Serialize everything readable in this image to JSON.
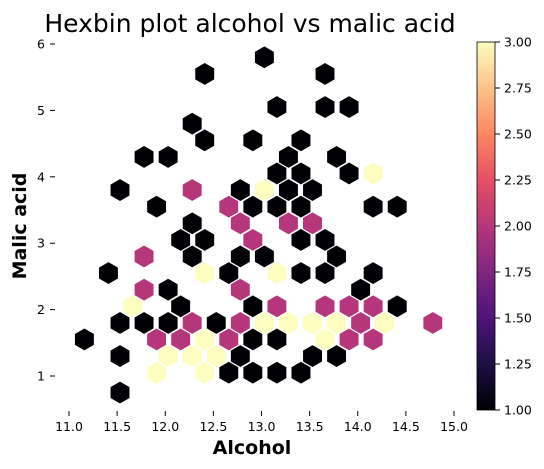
{
  "chart_data": {
    "type": "hexbin",
    "title": "Hexbin plot alcohol vs malic acid",
    "xlabel": "Alcohol",
    "ylabel": "Malic acid",
    "xlim": [
      10.85,
      15.1
    ],
    "ylim": [
      0.45,
      6.1
    ],
    "x_ticks": [
      "11.0",
      "11.5",
      "12.0",
      "12.5",
      "13.0",
      "13.5",
      "14.0",
      "14.5",
      "15.0"
    ],
    "y_ticks": [
      "1",
      "2",
      "3",
      "4",
      "5",
      "6"
    ],
    "colorbar": {
      "min": 1.0,
      "max": 3.0,
      "ticks": [
        "1.00",
        "1.25",
        "1.50",
        "1.75",
        "2.00",
        "2.25",
        "2.50",
        "2.75",
        "3.00"
      ],
      "colormap": "magma"
    },
    "grid": false,
    "bins": [
      {
        "x": 13.03,
        "y": 5.8,
        "count": 1
      },
      {
        "x": 12.41,
        "y": 5.55,
        "count": 1
      },
      {
        "x": 13.66,
        "y": 5.55,
        "count": 1
      },
      {
        "x": 13.16,
        "y": 5.05,
        "count": 1
      },
      {
        "x": 13.66,
        "y": 5.05,
        "count": 1
      },
      {
        "x": 13.91,
        "y": 5.05,
        "count": 1
      },
      {
        "x": 12.28,
        "y": 4.8,
        "count": 1
      },
      {
        "x": 12.41,
        "y": 4.55,
        "count": 1
      },
      {
        "x": 12.91,
        "y": 4.55,
        "count": 1
      },
      {
        "x": 13.41,
        "y": 4.55,
        "count": 1
      },
      {
        "x": 11.78,
        "y": 4.3,
        "count": 1
      },
      {
        "x": 12.03,
        "y": 4.3,
        "count": 1
      },
      {
        "x": 13.28,
        "y": 4.3,
        "count": 1
      },
      {
        "x": 13.78,
        "y": 4.3,
        "count": 1
      },
      {
        "x": 13.16,
        "y": 4.05,
        "count": 1
      },
      {
        "x": 13.41,
        "y": 4.05,
        "count": 1
      },
      {
        "x": 13.91,
        "y": 4.05,
        "count": 1
      },
      {
        "x": 14.16,
        "y": 4.05,
        "count": 3
      },
      {
        "x": 11.53,
        "y": 3.8,
        "count": 1
      },
      {
        "x": 12.28,
        "y": 3.8,
        "count": 2
      },
      {
        "x": 12.78,
        "y": 3.8,
        "count": 1
      },
      {
        "x": 13.03,
        "y": 3.8,
        "count": 3
      },
      {
        "x": 13.28,
        "y": 3.8,
        "count": 1
      },
      {
        "x": 13.53,
        "y": 3.8,
        "count": 1
      },
      {
        "x": 11.91,
        "y": 3.55,
        "count": 1
      },
      {
        "x": 12.66,
        "y": 3.55,
        "count": 2
      },
      {
        "x": 12.91,
        "y": 3.55,
        "count": 1
      },
      {
        "x": 13.16,
        "y": 3.55,
        "count": 1
      },
      {
        "x": 13.41,
        "y": 3.55,
        "count": 1
      },
      {
        "x": 14.16,
        "y": 3.55,
        "count": 1
      },
      {
        "x": 14.41,
        "y": 3.55,
        "count": 1
      },
      {
        "x": 12.28,
        "y": 3.3,
        "count": 1
      },
      {
        "x": 12.78,
        "y": 3.3,
        "count": 2
      },
      {
        "x": 13.28,
        "y": 3.3,
        "count": 2
      },
      {
        "x": 13.53,
        "y": 3.3,
        "count": 2
      },
      {
        "x": 12.16,
        "y": 3.05,
        "count": 1
      },
      {
        "x": 12.41,
        "y": 3.05,
        "count": 1
      },
      {
        "x": 12.91,
        "y": 3.05,
        "count": 2
      },
      {
        "x": 13.41,
        "y": 3.05,
        "count": 1
      },
      {
        "x": 13.66,
        "y": 3.05,
        "count": 1
      },
      {
        "x": 11.78,
        "y": 2.8,
        "count": 2
      },
      {
        "x": 12.28,
        "y": 2.8,
        "count": 1
      },
      {
        "x": 12.78,
        "y": 2.8,
        "count": 1
      },
      {
        "x": 13.03,
        "y": 2.8,
        "count": 1
      },
      {
        "x": 13.78,
        "y": 2.8,
        "count": 1
      },
      {
        "x": 11.41,
        "y": 2.55,
        "count": 1
      },
      {
        "x": 12.41,
        "y": 2.55,
        "count": 3
      },
      {
        "x": 12.66,
        "y": 2.55,
        "count": 1
      },
      {
        "x": 13.16,
        "y": 2.55,
        "count": 3
      },
      {
        "x": 13.41,
        "y": 2.55,
        "count": 1
      },
      {
        "x": 13.66,
        "y": 2.55,
        "count": 1
      },
      {
        "x": 14.16,
        "y": 2.55,
        "count": 1
      },
      {
        "x": 11.78,
        "y": 2.3,
        "count": 2
      },
      {
        "x": 12.03,
        "y": 2.3,
        "count": 1
      },
      {
        "x": 12.78,
        "y": 2.3,
        "count": 2
      },
      {
        "x": 14.03,
        "y": 2.3,
        "count": 1
      },
      {
        "x": 11.66,
        "y": 2.05,
        "count": 3
      },
      {
        "x": 12.16,
        "y": 2.05,
        "count": 1
      },
      {
        "x": 12.91,
        "y": 2.05,
        "count": 1
      },
      {
        "x": 13.16,
        "y": 2.05,
        "count": 2
      },
      {
        "x": 13.66,
        "y": 2.05,
        "count": 2
      },
      {
        "x": 13.91,
        "y": 2.05,
        "count": 2
      },
      {
        "x": 14.16,
        "y": 2.05,
        "count": 2
      },
      {
        "x": 14.41,
        "y": 2.05,
        "count": 1
      },
      {
        "x": 11.53,
        "y": 1.8,
        "count": 1
      },
      {
        "x": 11.78,
        "y": 1.8,
        "count": 1
      },
      {
        "x": 12.03,
        "y": 1.8,
        "count": 1
      },
      {
        "x": 12.28,
        "y": 1.8,
        "count": 2
      },
      {
        "x": 12.53,
        "y": 1.8,
        "count": 1
      },
      {
        "x": 12.78,
        "y": 1.8,
        "count": 2
      },
      {
        "x": 13.03,
        "y": 1.8,
        "count": 3
      },
      {
        "x": 13.28,
        "y": 1.8,
        "count": 3
      },
      {
        "x": 13.53,
        "y": 1.8,
        "count": 3
      },
      {
        "x": 13.78,
        "y": 1.8,
        "count": 3
      },
      {
        "x": 14.03,
        "y": 1.8,
        "count": 2
      },
      {
        "x": 14.28,
        "y": 1.8,
        "count": 3
      },
      {
        "x": 14.78,
        "y": 1.8,
        "count": 2
      },
      {
        "x": 11.16,
        "y": 1.55,
        "count": 1
      },
      {
        "x": 11.91,
        "y": 1.55,
        "count": 2
      },
      {
        "x": 12.16,
        "y": 1.55,
        "count": 2
      },
      {
        "x": 12.41,
        "y": 1.55,
        "count": 3
      },
      {
        "x": 12.66,
        "y": 1.55,
        "count": 2
      },
      {
        "x": 12.91,
        "y": 1.55,
        "count": 1
      },
      {
        "x": 13.16,
        "y": 1.55,
        "count": 1
      },
      {
        "x": 13.66,
        "y": 1.55,
        "count": 3
      },
      {
        "x": 13.91,
        "y": 1.55,
        "count": 2
      },
      {
        "x": 14.16,
        "y": 1.55,
        "count": 2
      },
      {
        "x": 11.53,
        "y": 1.3,
        "count": 1
      },
      {
        "x": 12.03,
        "y": 1.3,
        "count": 3
      },
      {
        "x": 12.28,
        "y": 1.3,
        "count": 3
      },
      {
        "x": 12.53,
        "y": 1.3,
        "count": 3
      },
      {
        "x": 12.78,
        "y": 1.3,
        "count": 1
      },
      {
        "x": 13.53,
        "y": 1.3,
        "count": 1
      },
      {
        "x": 13.78,
        "y": 1.3,
        "count": 1
      },
      {
        "x": 11.91,
        "y": 1.05,
        "count": 3
      },
      {
        "x": 12.41,
        "y": 1.05,
        "count": 3
      },
      {
        "x": 12.66,
        "y": 1.05,
        "count": 1
      },
      {
        "x": 12.91,
        "y": 1.05,
        "count": 1
      },
      {
        "x": 13.16,
        "y": 1.05,
        "count": 1
      },
      {
        "x": 13.41,
        "y": 1.05,
        "count": 1
      },
      {
        "x": 11.53,
        "y": 0.75,
        "count": 1
      }
    ]
  }
}
